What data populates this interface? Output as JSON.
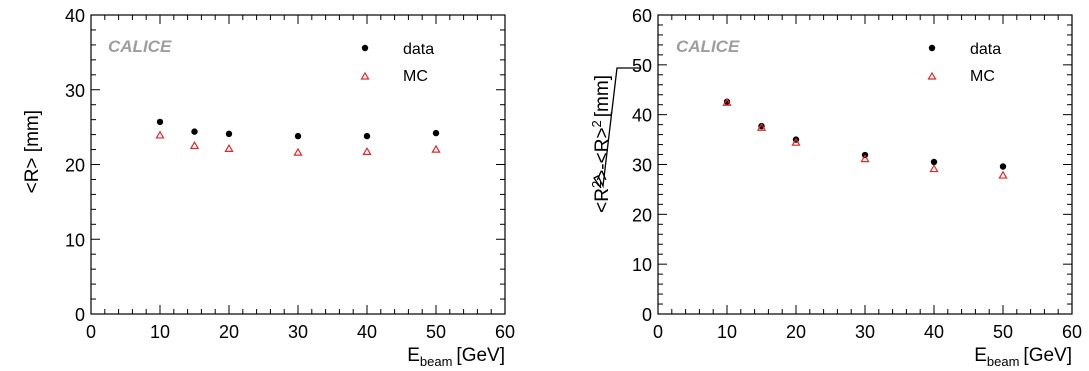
{
  "chart_data": [
    {
      "type": "scatter",
      "watermark": "CALICE",
      "xlabel_main": "E",
      "xlabel_sub": "beam",
      "xlabel_unit": "[GeV]",
      "ylabel": "<R> [mm]",
      "xlim": [
        0,
        60
      ],
      "ylim": [
        0,
        40
      ],
      "x_ticks": [
        "0",
        "10",
        "20",
        "30",
        "40",
        "50",
        "60"
      ],
      "y_ticks": [
        "0",
        "10",
        "20",
        "30",
        "40"
      ],
      "series": [
        {
          "name": "data",
          "marker": "dot",
          "color": "#000000",
          "x": [
            10,
            15,
            20,
            30,
            40,
            50
          ],
          "y": [
            25.7,
            24.4,
            24.1,
            23.8,
            23.8,
            24.2
          ]
        },
        {
          "name": "MC",
          "marker": "triangle-open",
          "color": "#e8262a",
          "x": [
            10,
            15,
            20,
            30,
            40,
            50
          ],
          "y": [
            23.9,
            22.5,
            22.1,
            21.6,
            21.7,
            22.0
          ]
        }
      ]
    },
    {
      "type": "scatter",
      "watermark": "CALICE",
      "xlabel_main": "E",
      "xlabel_sub": "beam",
      "xlabel_unit": "[GeV]",
      "ylabel": "√<R²>-<R>² [mm]",
      "xlim": [
        0,
        60
      ],
      "ylim": [
        0,
        60
      ],
      "x_ticks": [
        "0",
        "10",
        "20",
        "30",
        "40",
        "50",
        "60"
      ],
      "y_ticks": [
        "0",
        "10",
        "20",
        "30",
        "40",
        "50",
        "60"
      ],
      "series": [
        {
          "name": "data",
          "marker": "dot",
          "color": "#000000",
          "x": [
            10,
            15,
            20,
            30,
            40,
            50
          ],
          "y": [
            42.6,
            37.7,
            35.0,
            31.9,
            30.5,
            29.6
          ]
        },
        {
          "name": "MC",
          "marker": "triangle-open",
          "color": "#e8262a",
          "x": [
            10,
            15,
            20,
            30,
            40,
            50
          ],
          "y": [
            42.4,
            37.4,
            34.4,
            31.1,
            29.1,
            27.8
          ]
        }
      ]
    }
  ]
}
